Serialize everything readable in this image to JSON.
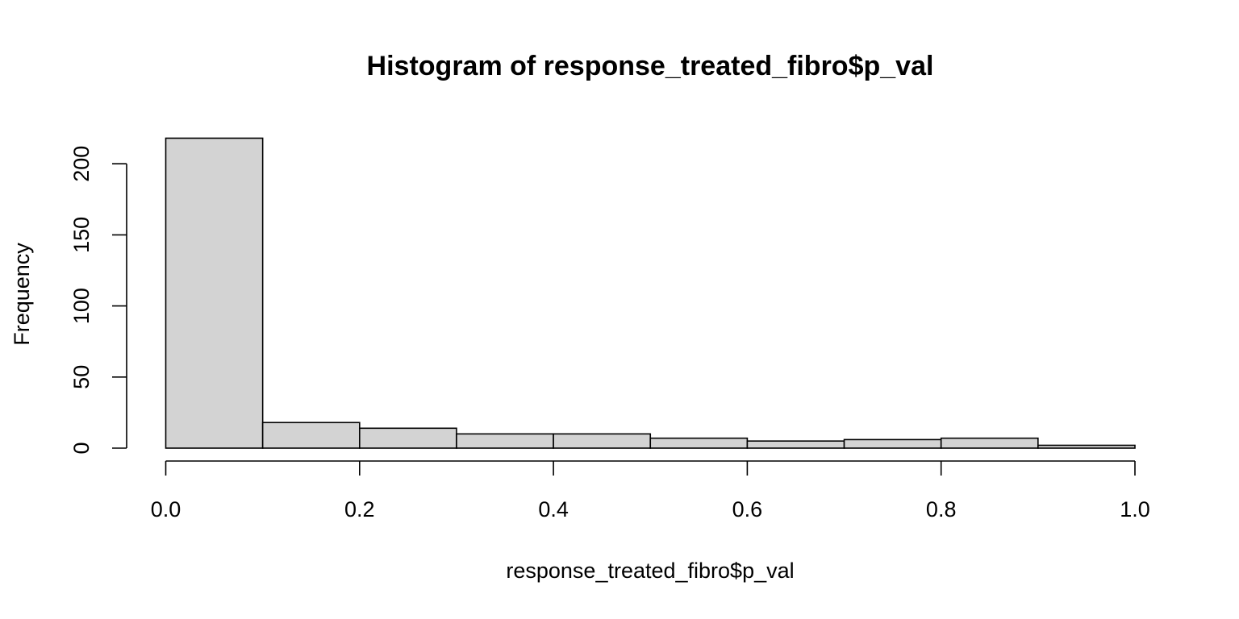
{
  "chart_data": {
    "type": "bar",
    "title": "Histogram of response_treated_fibro$p_val",
    "xlabel": "response_treated_fibro$p_val",
    "ylabel": "Frequency",
    "bins": [
      {
        "from": 0.0,
        "to": 0.1,
        "count": 218
      },
      {
        "from": 0.1,
        "to": 0.2,
        "count": 18
      },
      {
        "from": 0.2,
        "to": 0.3,
        "count": 14
      },
      {
        "from": 0.3,
        "to": 0.4,
        "count": 10
      },
      {
        "from": 0.4,
        "to": 0.5,
        "count": 10
      },
      {
        "from": 0.5,
        "to": 0.6,
        "count": 7
      },
      {
        "from": 0.6,
        "to": 0.7,
        "count": 5
      },
      {
        "from": 0.7,
        "to": 0.8,
        "count": 6
      },
      {
        "from": 0.8,
        "to": 0.9,
        "count": 7
      },
      {
        "from": 0.9,
        "to": 1.0,
        "count": 2
      }
    ],
    "xlim": [
      0,
      1
    ],
    "ylim": [
      0,
      218
    ],
    "xticks": [
      0.0,
      0.2,
      0.4,
      0.6,
      0.8,
      1.0
    ],
    "xtick_labels": [
      "0.0",
      "0.2",
      "0.4",
      "0.6",
      "0.8",
      "1.0"
    ],
    "yticks": [
      0,
      50,
      100,
      150,
      200
    ],
    "ytick_labels": [
      "0",
      "50",
      "100",
      "150",
      "200"
    ],
    "grid": false,
    "bar_color": "#d3d3d3",
    "edge_color": "#000000"
  }
}
